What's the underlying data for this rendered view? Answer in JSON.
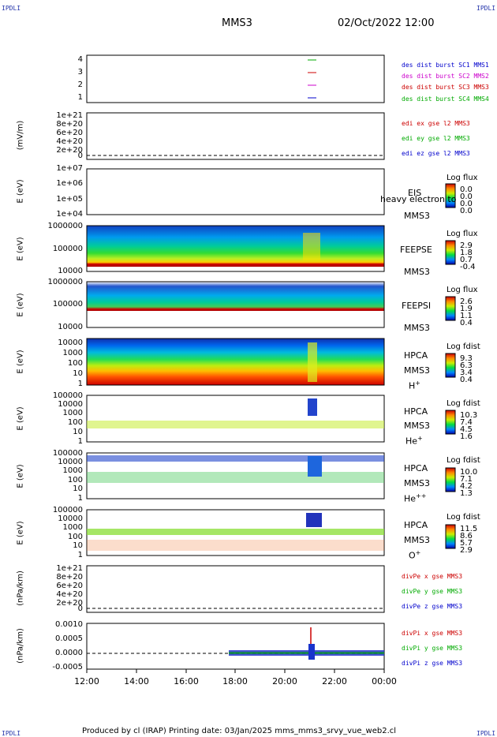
{
  "header": {
    "corner_left": "IPDLI",
    "corner_right": "IPDLI",
    "title": "MMS3",
    "datetime": "02/Oct/2022 12:00",
    "corner_bottom_left": "IPDLI",
    "corner_bottom_right": "IPDLI"
  },
  "footer": {
    "text": "Produced by cl (IRAP)   Printing date: 03/Jan/2025   mms_mms3_srvy_vue_web2.cl"
  },
  "x_axis": {
    "ticks": [
      "12:00",
      "14:00",
      "16:00",
      "18:00",
      "20:00",
      "22:00",
      "00:00"
    ]
  },
  "panels": {
    "burst": {
      "y_ticks": [
        "4",
        "3",
        "2",
        "1"
      ],
      "legend": [
        {
          "text": "des dist burst SC1 MMS1",
          "color": "#0000cc"
        },
        {
          "text": "des dist burst SC2 MMS2",
          "color": "#cc00cc"
        },
        {
          "text": "des dist burst SC3 MMS3",
          "color": "#cc0000"
        },
        {
          "text": "des dist burst SC4 MMS4",
          "color": "#00aa00"
        }
      ]
    },
    "edi": {
      "ylabel": "(mV/m)",
      "y_ticks": [
        "1e+21",
        "8e+20",
        "6e+20",
        "4e+20",
        "2e+20",
        "0"
      ],
      "legend": [
        {
          "text": "edi ex gse l2 MMS3",
          "color": "#cc0000"
        },
        {
          "text": "edi ey gse l2 MMS3",
          "color": "#00aa00"
        },
        {
          "text": "edi ez gse l2 MMS3",
          "color": "#0000cc"
        }
      ]
    },
    "eis": {
      "ylabel": "E (eV)",
      "y_ticks": [
        "1e+07",
        "1e+06",
        "1e+05",
        "1e+04"
      ],
      "label1": "EIS",
      "label2": "heavy electron to",
      "label3": "MMS3",
      "cb_title": "Log flux",
      "cb_values": [
        "0.0",
        "0.0",
        "0.0",
        "0.0"
      ]
    },
    "feepse": {
      "ylabel": "E (eV)",
      "y_ticks": [
        "1000000",
        "100000",
        "10000"
      ],
      "label1": "FEEPSE",
      "label2": "MMS3",
      "cb_title": "Log flux",
      "cb_values": [
        "2.9",
        "1.8",
        "0.7",
        "-0.4"
      ]
    },
    "feepsi": {
      "ylabel": "E (eV)",
      "y_ticks": [
        "1000000",
        "100000",
        "10000"
      ],
      "label1": "FEEPSI",
      "label2": "MMS3",
      "cb_title": "Log flux",
      "cb_values": [
        "2.6",
        "1.9",
        "1.1",
        "0.4"
      ]
    },
    "hpca_h": {
      "ylabel": "E (eV)",
      "y_ticks": [
        "10000",
        "1000",
        "100",
        "10",
        "1"
      ],
      "label1": "HPCA",
      "label2": "MMS3",
      "species": "H",
      "charge": "+",
      "cb_title": "Log fdist",
      "cb_values": [
        "9.3",
        "6.3",
        "3.4",
        "0.4"
      ]
    },
    "hpca_he1": {
      "ylabel": "E (eV)",
      "y_ticks": [
        "100000",
        "10000",
        "1000",
        "100",
        "10",
        "1"
      ],
      "label1": "HPCA",
      "label2": "MMS3",
      "species": "He",
      "charge": "+",
      "cb_title": "Log fdist",
      "cb_values": [
        "10.3",
        "7.4",
        "4.5",
        "1.6"
      ]
    },
    "hpca_he2": {
      "ylabel": "E (eV)",
      "y_ticks": [
        "100000",
        "10000",
        "1000",
        "100",
        "10",
        "1"
      ],
      "label1": "HPCA",
      "label2": "MMS3",
      "species": "He",
      "charge": "++",
      "cb_title": "Log fdist",
      "cb_values": [
        "10.0",
        "7.1",
        "4.2",
        "1.3"
      ]
    },
    "hpca_o": {
      "ylabel": "E (eV)",
      "y_ticks": [
        "100000",
        "10000",
        "1000",
        "100",
        "10",
        "1"
      ],
      "label1": "HPCA",
      "label2": "MMS3",
      "species": "O",
      "charge": "+",
      "cb_title": "Log fdist",
      "cb_values": [
        "11.5",
        "8.6",
        "5.7",
        "2.9"
      ]
    },
    "divpe": {
      "ylabel": "(nPa/km)",
      "y_ticks": [
        "1e+21",
        "8e+20",
        "6e+20",
        "4e+20",
        "2e+20",
        "0"
      ],
      "legend": [
        {
          "text": "divPe x gse MMS3",
          "color": "#cc0000"
        },
        {
          "text": "divPe y gse MMS3",
          "color": "#00aa00"
        },
        {
          "text": "divPe z gse MMS3",
          "color": "#0000cc"
        }
      ]
    },
    "divpi": {
      "ylabel": "(nPa/km)",
      "y_ticks": [
        "0.0010",
        "0.0005",
        "0.0000",
        "-0.0005"
      ],
      "legend": [
        {
          "text": "divPi x gse MMS3",
          "color": "#cc0000"
        },
        {
          "text": "divPi y gse MMS3",
          "color": "#00aa00"
        },
        {
          "text": "divPi z gse MMS3",
          "color": "#0000cc"
        }
      ]
    }
  },
  "chart_data": {
    "type": "heatmap",
    "x": [
      "12:00",
      "14:00",
      "16:00",
      "18:00",
      "20:00",
      "22:00",
      "00:00"
    ],
    "burst_intervals": [
      {
        "sc": 4,
        "start": "20:55",
        "end": "21:15"
      },
      {
        "sc": 3,
        "start": "20:55",
        "end": "21:15"
      },
      {
        "sc": 2,
        "start": "20:55",
        "end": "21:15"
      },
      {
        "sc": 1,
        "start": "20:55",
        "end": "21:15"
      }
    ],
    "divpi_ylim": [
      -0.0005,
      0.001
    ],
    "divpi_spike": {
      "time": "21:00",
      "max": 0.001,
      "min": -0.0002
    },
    "divpi_data_start": "17:45"
  }
}
